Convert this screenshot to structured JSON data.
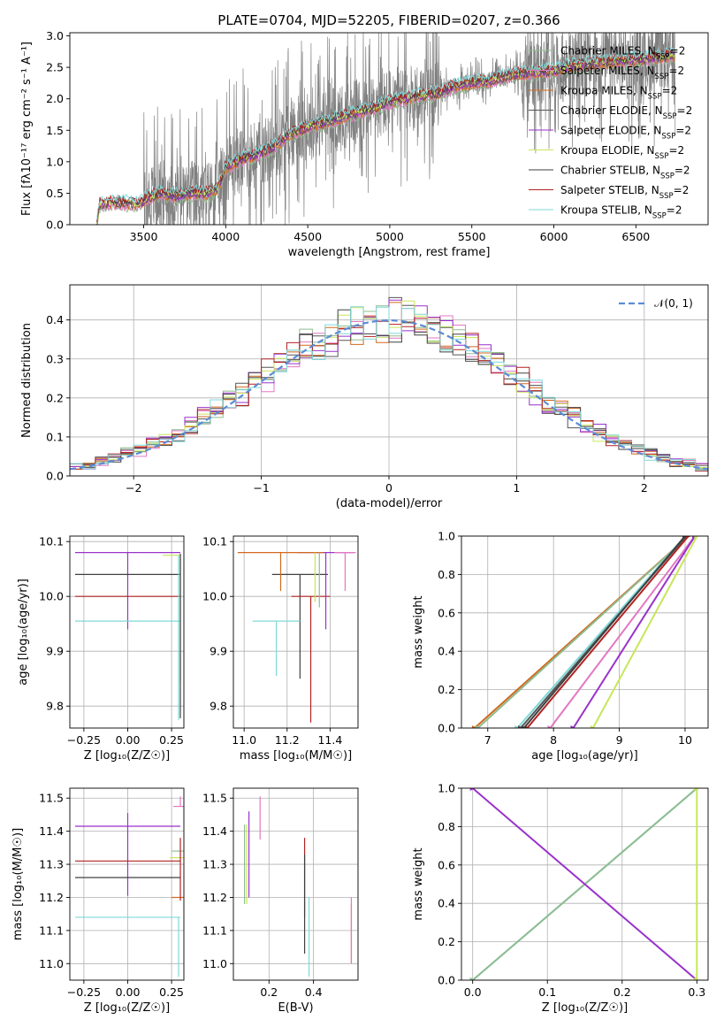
{
  "figure_title": "PLATE=0704, MJD=52205, FIBERID=0207, z=0.366",
  "colors": {
    "Chabrier MILES": "#8fbc8f",
    "Salpeter MILES": "#e377c2",
    "Kroupa MILES": "#d2691e",
    "Chabrier ELODIE": "#555555",
    "Salpeter ELODIE": "#9932cc",
    "Kroupa ELODIE": "#c8e65a",
    "Chabrier STELIB": "#404040",
    "Salpeter STELIB": "#b22222",
    "Kroupa STELIB": "#80d8d8",
    "data": "#808080",
    "gaussian": "#5b8bd6"
  },
  "chart_data": [
    {
      "id": "spectrum",
      "type": "line",
      "title": "PLATE=0704, MJD=52205, FIBERID=0207, z=0.366",
      "xlabel": "wavelength [Angstrom, rest frame]",
      "ylabel": "Flux [f$_\\lambda$10$^{-17}$ erg cm$^{-2}$ s$^{-1}$ A$^{-1}$]",
      "ylabel_display": "Flux [fλ10⁻¹⁷ erg cm⁻² s⁻¹ A⁻¹]",
      "xlim": [
        3050,
        6940
      ],
      "ylim": [
        0,
        3.05
      ],
      "xticks": [
        3500,
        4000,
        4500,
        5000,
        5500,
        6000,
        6500
      ],
      "yticks": [
        0.0,
        0.5,
        1.0,
        1.5,
        2.0,
        2.5,
        3.0
      ],
      "ytick_labels": [
        "0.0",
        "0.5",
        "1.0",
        "1.5",
        "2.0",
        "2.5",
        "3.0"
      ],
      "grid": false,
      "legend_placement": "top-right",
      "legend": [
        "Chabrier MILES, N$_{SSP}$=2",
        "Salpeter MILES, N$_{SSP}$=2",
        "Kroupa MILES, N$_{SSP}$=2",
        "Chabrier ELODIE, N$_{SSP}$=2",
        "Salpeter ELODIE, N$_{SSP}$=2",
        "Kroupa ELODIE, N$_{SSP}$=2",
        "Chabrier STELIB, N$_{SSP}$=2",
        "Salpeter STELIB, N$_{SSP}$=2",
        "Kroupa STELIB, N$_{SSP}$=2"
      ],
      "legend_display": [
        "Chabrier MILES, N_SSP=2",
        "Salpeter MILES, N_SSP=2",
        "Kroupa MILES, N_SSP=2",
        "Chabrier ELODIE, N_SSP=2",
        "Salpeter ELODIE, N_SSP=2",
        "Kroupa ELODIE, N_SSP=2",
        "Chabrier STELIB, N_SSP=2",
        "Salpeter STELIB, N_SSP=2",
        "Kroupa STELIB, N_SSP=2"
      ],
      "series_names": [
        "Chabrier MILES",
        "Salpeter MILES",
        "Kroupa MILES",
        "Chabrier ELODIE",
        "Salpeter ELODIE",
        "Kroupa ELODIE",
        "Chabrier STELIB",
        "Salpeter STELIB",
        "Kroupa STELIB"
      ],
      "model_continuum": {
        "x": [
          3215,
          3230,
          3300,
          3400,
          3480,
          3520,
          3600,
          3700,
          3800,
          3900,
          3950,
          4000,
          4100,
          4200,
          4300,
          4400,
          4500,
          4600,
          4700,
          4800,
          4900,
          5000,
          5100,
          5200,
          5300,
          5400,
          5500,
          5600,
          5700,
          5800,
          5900,
          6000,
          6100,
          6200,
          6300,
          6400,
          6500,
          6600,
          6700,
          6740
        ],
        "y": [
          0.0,
          0.32,
          0.35,
          0.34,
          0.33,
          0.42,
          0.5,
          0.45,
          0.5,
          0.5,
          0.58,
          0.9,
          1.05,
          1.12,
          1.25,
          1.45,
          1.55,
          1.62,
          1.7,
          1.78,
          1.85,
          1.95,
          2.0,
          2.05,
          2.1,
          2.2,
          2.25,
          2.28,
          2.35,
          2.4,
          2.42,
          2.45,
          2.52,
          2.55,
          2.58,
          2.6,
          2.62,
          2.65,
          2.68,
          2.68
        ]
      },
      "data_range": [
        3215,
        6740
      ],
      "data_noisy_from": 3500
    },
    {
      "id": "residuals",
      "type": "step",
      "xlabel": "(data-model)/error",
      "ylabel": "Normed distribution",
      "xlim": [
        -2.5,
        2.5
      ],
      "ylim": [
        0,
        0.49
      ],
      "xticks": [
        -2,
        -1,
        0,
        1,
        2
      ],
      "xtick_labels": [
        "−2",
        "−1",
        "0",
        "1",
        "2"
      ],
      "yticks": [
        0.0,
        0.1,
        0.2,
        0.3,
        0.4
      ],
      "ytick_labels": [
        "0.0",
        "0.1",
        "0.2",
        "0.3",
        "0.4"
      ],
      "grid": true,
      "legend_placement": "top-right",
      "legend": [
        "$\\mathcal{N}(0,1)$"
      ],
      "legend_display": [
        "𝒩(0, 1)"
      ],
      "bin_width": 0.1,
      "curve": {
        "type": "gaussian",
        "mean": 0,
        "sigma": 1,
        "style": "dashed"
      }
    },
    {
      "id": "age-vs-Z",
      "type": "errorbar",
      "xlabel": "Z [log$_{10}$(Z/Z$_\\odot$)]",
      "xlabel_display": "Z [log₁₀(Z/Z☉)]",
      "ylabel": "age  [log$_{10}$(age/yr)]",
      "ylabel_display": "age  [log₁₀(age/yr)]",
      "xlim": [
        -0.33,
        0.32
      ],
      "ylim": [
        9.76,
        10.11
      ],
      "xticks": [
        -0.25,
        0.0,
        0.25
      ],
      "xtick_labels": [
        "−0.25",
        "0.00",
        "0.25"
      ],
      "yticks": [
        9.8,
        9.9,
        10.0,
        10.1
      ],
      "ytick_labels": [
        "9.8",
        "9.9",
        "10.0",
        "10.1"
      ],
      "grid": true,
      "points": [
        {
          "series": "Salpeter ELODIE",
          "x": 0.0,
          "y": 10.08,
          "xerr": 0.3,
          "yerr_low": 0.14,
          "yerr_high": 0.0
        },
        {
          "series": "Chabrier STELIB",
          "x": 0.0,
          "y": 10.04,
          "xerr": 0.3,
          "yerr_low": 0.0,
          "yerr_high": 0.0
        },
        {
          "series": "Salpeter STELIB",
          "x": 0.0,
          "y": 10.0,
          "xerr": 0.3,
          "yerr_low": 0.0,
          "yerr_high": 0.0
        },
        {
          "series": "Kroupa STELIB",
          "x": 0.0,
          "y": 9.955,
          "xerr": 0.3,
          "yerr_low": 0.0,
          "yerr_high": 0.0
        },
        {
          "series": "Kroupa ELODIE",
          "x": 0.25,
          "y": 10.075,
          "xerr": 0.05,
          "yerr_low": 0.0,
          "yerr_high": 0.0
        },
        {
          "series": "Chabrier MILES",
          "x": 0.3,
          "y": 10.075,
          "xerr": 0.0,
          "yerr_low": 0.23,
          "yerr_high": 0.0
        },
        {
          "series": "Kroupa STELIB",
          "x": 0.29,
          "y": 10.075,
          "xerr": 0.0,
          "yerr_low": 0.3,
          "yerr_high": 0.0
        },
        {
          "series": "Chabrier STELIB",
          "x": 0.3,
          "y": 10.078,
          "xerr": 0.0,
          "yerr_low": 0.3,
          "yerr_high": 0.0
        }
      ]
    },
    {
      "id": "age-vs-mass",
      "type": "errorbar",
      "xlabel": "mass [log$_{10}$(M/M$_\\odot$)]",
      "xlabel_display": "mass [log₁₀(M/M☉)]",
      "xlim": [
        10.95,
        11.53
      ],
      "ylim": [
        9.76,
        10.11
      ],
      "xticks": [
        11.0,
        11.2,
        11.4
      ],
      "xtick_labels": [
        "11.0",
        "11.2",
        "11.4"
      ],
      "yticks": [
        9.8,
        9.9,
        10.0,
        10.1
      ],
      "ytick_labels": [
        "9.8",
        "9.9",
        "10.0",
        "10.1"
      ],
      "grid": true,
      "points": [
        {
          "series": "Chabrier STELIB",
          "x": 11.26,
          "y": 10.04,
          "xerr": 0.13,
          "yerr_low": 0.19,
          "yerr_high": 0.0
        },
        {
          "series": "Salpeter STELIB",
          "x": 11.31,
          "y": 10.0,
          "xerr": 0.09,
          "yerr_low": 0.23,
          "yerr_high": 0.0
        },
        {
          "series": "Kroupa STELIB",
          "x": 11.15,
          "y": 9.955,
          "xerr": 0.11,
          "yerr_low": 0.1,
          "yerr_high": 0.0
        },
        {
          "series": "Salpeter ELODIE",
          "x": 11.38,
          "y": 10.08,
          "xerr": 0.13,
          "yerr_low": 0.14,
          "yerr_high": 0.0
        },
        {
          "series": "Kroupa MILES",
          "x": 11.17,
          "y": 10.08,
          "xerr": 0.2,
          "yerr_low": 0.07,
          "yerr_high": 0.0
        },
        {
          "series": "Chabrier MILES",
          "x": 11.35,
          "y": 10.08,
          "xerr": 0.0,
          "yerr_low": 0.1,
          "yerr_high": 0.0
        },
        {
          "series": "Salpeter MILES",
          "x": 11.47,
          "y": 10.08,
          "xerr": 0.05,
          "yerr_low": 0.07,
          "yerr_high": 0.0
        },
        {
          "series": "Kroupa ELODIE",
          "x": 11.33,
          "y": 10.08,
          "xerr": 0.0,
          "yerr_low": 0.09,
          "yerr_high": 0.0
        }
      ]
    },
    {
      "id": "mass-weight-vs-age",
      "type": "line",
      "xlabel": "age  [log$_{10}$(age/yr)]",
      "xlabel_display": "age  [log₁₀(age/yr)]",
      "ylabel": "mass weight",
      "xlim": [
        6.6,
        10.35
      ],
      "ylim": [
        0,
        1
      ],
      "xticks": [
        7,
        8,
        9,
        10
      ],
      "xtick_labels": [
        "7",
        "8",
        "9",
        "10"
      ],
      "yticks": [
        0.0,
        0.2,
        0.4,
        0.6,
        0.8,
        1.0
      ],
      "ytick_labels": [
        "0.0",
        "0.2",
        "0.4",
        "0.6",
        "0.8",
        "1.0"
      ],
      "grid": true,
      "series": [
        {
          "series": "Kroupa MILES",
          "x": [
            6.8,
            10.05
          ],
          "y": [
            0,
            1
          ]
        },
        {
          "series": "Chabrier MILES",
          "x": [
            6.85,
            10.05
          ],
          "y": [
            0,
            1
          ]
        },
        {
          "series": "Kroupa STELIB",
          "x": [
            7.45,
            10.0
          ],
          "y": [
            0,
            1
          ]
        },
        {
          "series": "Chabrier ELODIE",
          "x": [
            7.5,
            10.02
          ],
          "y": [
            0,
            1
          ]
        },
        {
          "series": "Salpeter STELIB",
          "x": [
            7.6,
            10.05
          ],
          "y": [
            0,
            1
          ]
        },
        {
          "series": "Salpeter MILES",
          "x": [
            7.95,
            10.15
          ],
          "y": [
            0,
            1
          ]
        },
        {
          "series": "Salpeter ELODIE",
          "x": [
            8.3,
            10.15
          ],
          "y": [
            0,
            1
          ]
        },
        {
          "series": "Kroupa ELODIE",
          "x": [
            8.6,
            10.18
          ],
          "y": [
            0,
            1
          ]
        },
        {
          "series": "Chabrier STELIB",
          "x": [
            7.55,
            10.0
          ],
          "y": [
            0,
            1
          ]
        }
      ]
    },
    {
      "id": "mass-vs-Z",
      "type": "errorbar",
      "xlabel": "Z [log$_{10}$(Z/Z$_\\odot$)]",
      "xlabel_display": "Z [log₁₀(Z/Z☉)]",
      "ylabel": "mass [log$_{10}$(M/M$_\\odot$)]",
      "ylabel_display": "mass [log₁₀(M/M☉)]",
      "xlim": [
        -0.33,
        0.32
      ],
      "ylim": [
        10.95,
        11.53
      ],
      "xticks": [
        -0.25,
        0.0,
        0.25
      ],
      "xtick_labels": [
        "−0.25",
        "0.00",
        "0.25"
      ],
      "yticks": [
        11.0,
        11.1,
        11.2,
        11.3,
        11.4,
        11.5
      ],
      "ytick_labels": [
        "11.0",
        "11.1",
        "11.2",
        "11.3",
        "11.4",
        "11.5"
      ],
      "grid": true,
      "points": [
        {
          "series": "Salpeter ELODIE",
          "x": 0.0,
          "y": 11.415,
          "xerr": 0.3,
          "yerr_low": 0.21,
          "yerr_high": 0.04
        },
        {
          "series": "Salpeter STELIB",
          "x": 0.0,
          "y": 11.31,
          "xerr": 0.3,
          "yerr_low": 0.0,
          "yerr_high": 0.0
        },
        {
          "series": "Chabrier STELIB",
          "x": 0.0,
          "y": 11.26,
          "xerr": 0.3,
          "yerr_low": 0.0,
          "yerr_high": 0.0
        },
        {
          "series": "Kroupa STELIB",
          "x": 0.0,
          "y": 11.14,
          "xerr": 0.3,
          "yerr_low": 0.0,
          "yerr_high": 0.0
        },
        {
          "series": "Salpeter MILES",
          "x": 0.3,
          "y": 11.475,
          "xerr": 0.04,
          "yerr_low": 0.0,
          "yerr_high": 0.03
        },
        {
          "series": "Chabrier MILES",
          "x": 0.3,
          "y": 11.34,
          "xerr": 0.05,
          "yerr_low": 0.0,
          "yerr_high": 0.0
        },
        {
          "series": "Kroupa ELODIE",
          "x": 0.3,
          "y": 11.32,
          "xerr": 0.06,
          "yerr_low": 0.0,
          "yerr_high": 0.0
        },
        {
          "series": "Kroupa MILES",
          "x": 0.3,
          "y": 11.2,
          "xerr": 0.05,
          "yerr_low": 0.0,
          "yerr_high": 0.0
        },
        {
          "series": "Salpeter STELIB",
          "x": 0.3,
          "y": 11.31,
          "xerr": 0.0,
          "yerr_low": 0.12,
          "yerr_high": 0.07
        },
        {
          "series": "Kroupa STELIB",
          "x": 0.29,
          "y": 11.14,
          "xerr": 0.0,
          "yerr_low": 0.18,
          "yerr_high": 0.0
        }
      ]
    },
    {
      "id": "mass-vs-EBV",
      "type": "errorbar",
      "xlabel": "E(B-V)",
      "xlim": [
        0.04,
        0.6
      ],
      "ylim": [
        10.95,
        11.53
      ],
      "xticks": [
        0.2,
        0.4
      ],
      "xtick_labels": [
        "0.2",
        "0.4"
      ],
      "yticks": [
        11.0,
        11.1,
        11.2,
        11.3,
        11.4,
        11.5
      ],
      "ytick_labels": [
        "11.0",
        "11.1",
        "11.2",
        "11.3",
        "11.4",
        "11.5"
      ],
      "grid": true,
      "points": [
        {
          "series": "Chabrier MILES",
          "x": 0.09,
          "y": 11.3,
          "yerr": 0.12
        },
        {
          "series": "Kroupa ELODIE",
          "x": 0.1,
          "y": 11.3,
          "yerr": 0.12
        },
        {
          "series": "Salpeter ELODIE",
          "x": 0.11,
          "y": 11.33,
          "yerr": 0.13
        },
        {
          "series": "Salpeter MILES",
          "x": 0.16,
          "y": 11.44,
          "yerr": 0.065
        },
        {
          "series": "Salpeter STELIB",
          "x": 0.36,
          "y": 11.26,
          "yerr": 0.12
        },
        {
          "series": "Chabrier STELIB",
          "x": 0.36,
          "y": 11.18,
          "yerr": 0.15
        },
        {
          "series": "Kroupa STELIB",
          "x": 0.38,
          "y": 11.08,
          "yerr": 0.12
        },
        {
          "series": "Kroupa MILES",
          "x": 0.57,
          "y": 11.09,
          "yerr": 0.09
        },
        {
          "series": "Salpeter MILES",
          "x": 0.57,
          "y": 11.1,
          "yerr": 0.1
        }
      ]
    },
    {
      "id": "mass-weight-vs-Z",
      "type": "line",
      "xlabel": "Z [log$_{10}$(Z/Z$_\\odot$)]",
      "xlabel_display": "Z [log₁₀(Z/Z☉)]",
      "ylabel": "mass weight",
      "xlim": [
        -0.015,
        0.315
      ],
      "ylim": [
        0,
        1
      ],
      "xticks": [
        0.0,
        0.1,
        0.2,
        0.3
      ],
      "xtick_labels": [
        "0.0",
        "0.1",
        "0.2",
        "0.3"
      ],
      "yticks": [
        0.0,
        0.2,
        0.4,
        0.6,
        0.8,
        1.0
      ],
      "ytick_labels": [
        "0.0",
        "0.2",
        "0.4",
        "0.6",
        "0.8",
        "1.0"
      ],
      "grid": true,
      "series": [
        {
          "series": "Kroupa STELIB",
          "x": [
            0.0,
            0.3
          ],
          "y": [
            0,
            1
          ]
        },
        {
          "series": "Chabrier MILES",
          "x": [
            0.0,
            0.3
          ],
          "y": [
            0,
            1
          ]
        },
        {
          "series": "Salpeter ELODIE",
          "x": [
            0.0,
            0.3
          ],
          "y": [
            1,
            0
          ]
        },
        {
          "series": "Kroupa ELODIE",
          "x": [
            0.3,
            0.3
          ],
          "y": [
            0,
            1
          ]
        }
      ]
    }
  ]
}
